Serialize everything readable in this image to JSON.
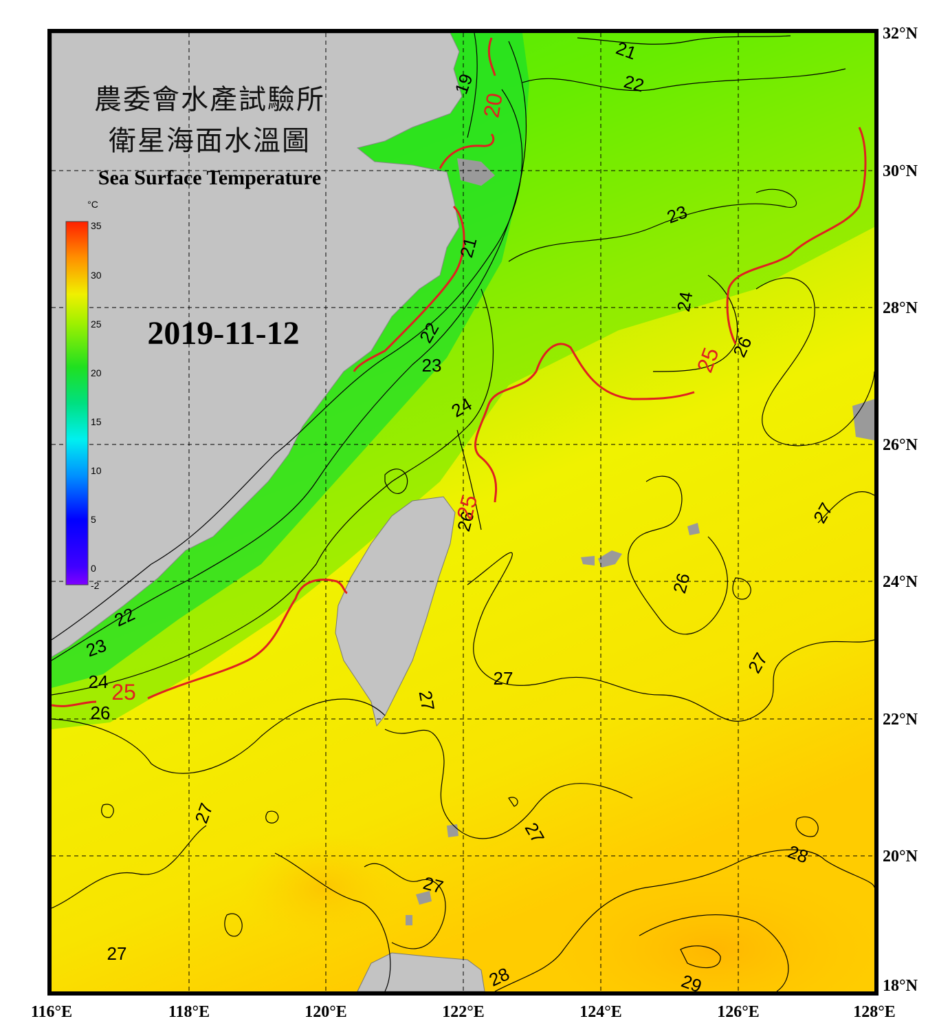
{
  "title": {
    "chinese_line1": "農委會水產試驗所",
    "chinese_line2": "衛星海面水溫圖",
    "english": "Sea Surface Temperature"
  },
  "date": "2019-11-12",
  "colorbar": {
    "unit": "°C",
    "labels": [
      "35",
      "30",
      "25",
      "20",
      "15",
      "10",
      "5",
      "0",
      "-2"
    ]
  },
  "axes": {
    "lon_labels": [
      "116°E",
      "118°E",
      "120°E",
      "122°E",
      "124°E",
      "126°E",
      "128°E"
    ],
    "lat_labels": [
      "32°N",
      "30°N",
      "28°N",
      "26°N",
      "24°N",
      "22°N",
      "20°N",
      "18°N"
    ]
  },
  "isotherm_labels": [
    {
      "text": "19"
    },
    {
      "text": "20"
    },
    {
      "text": "21"
    },
    {
      "text": "22"
    },
    {
      "text": "21"
    },
    {
      "text": "22"
    },
    {
      "text": "23"
    },
    {
      "text": "24"
    },
    {
      "text": "25"
    },
    {
      "text": "26"
    },
    {
      "text": "23"
    },
    {
      "text": "24"
    },
    {
      "text": "26"
    },
    {
      "text": "25"
    },
    {
      "text": "27"
    },
    {
      "text": "26"
    },
    {
      "text": "22"
    },
    {
      "text": "23"
    },
    {
      "text": "24"
    },
    {
      "text": "25"
    },
    {
      "text": "26"
    },
    {
      "text": "27"
    },
    {
      "text": "27"
    },
    {
      "text": "27"
    },
    {
      "text": "27"
    },
    {
      "text": "27"
    },
    {
      "text": "28"
    },
    {
      "text": "27"
    },
    {
      "text": "27"
    },
    {
      "text": "28"
    },
    {
      "text": "29"
    }
  ],
  "colors": {
    "land": "#c3c3c3",
    "cold_sea": "#22e022",
    "mid_sea": "#88ee00",
    "warm_sea": "#f0f000",
    "hot_sea": "#ffc800",
    "isotherm_25": "#e02020",
    "frame": "#000000"
  }
}
